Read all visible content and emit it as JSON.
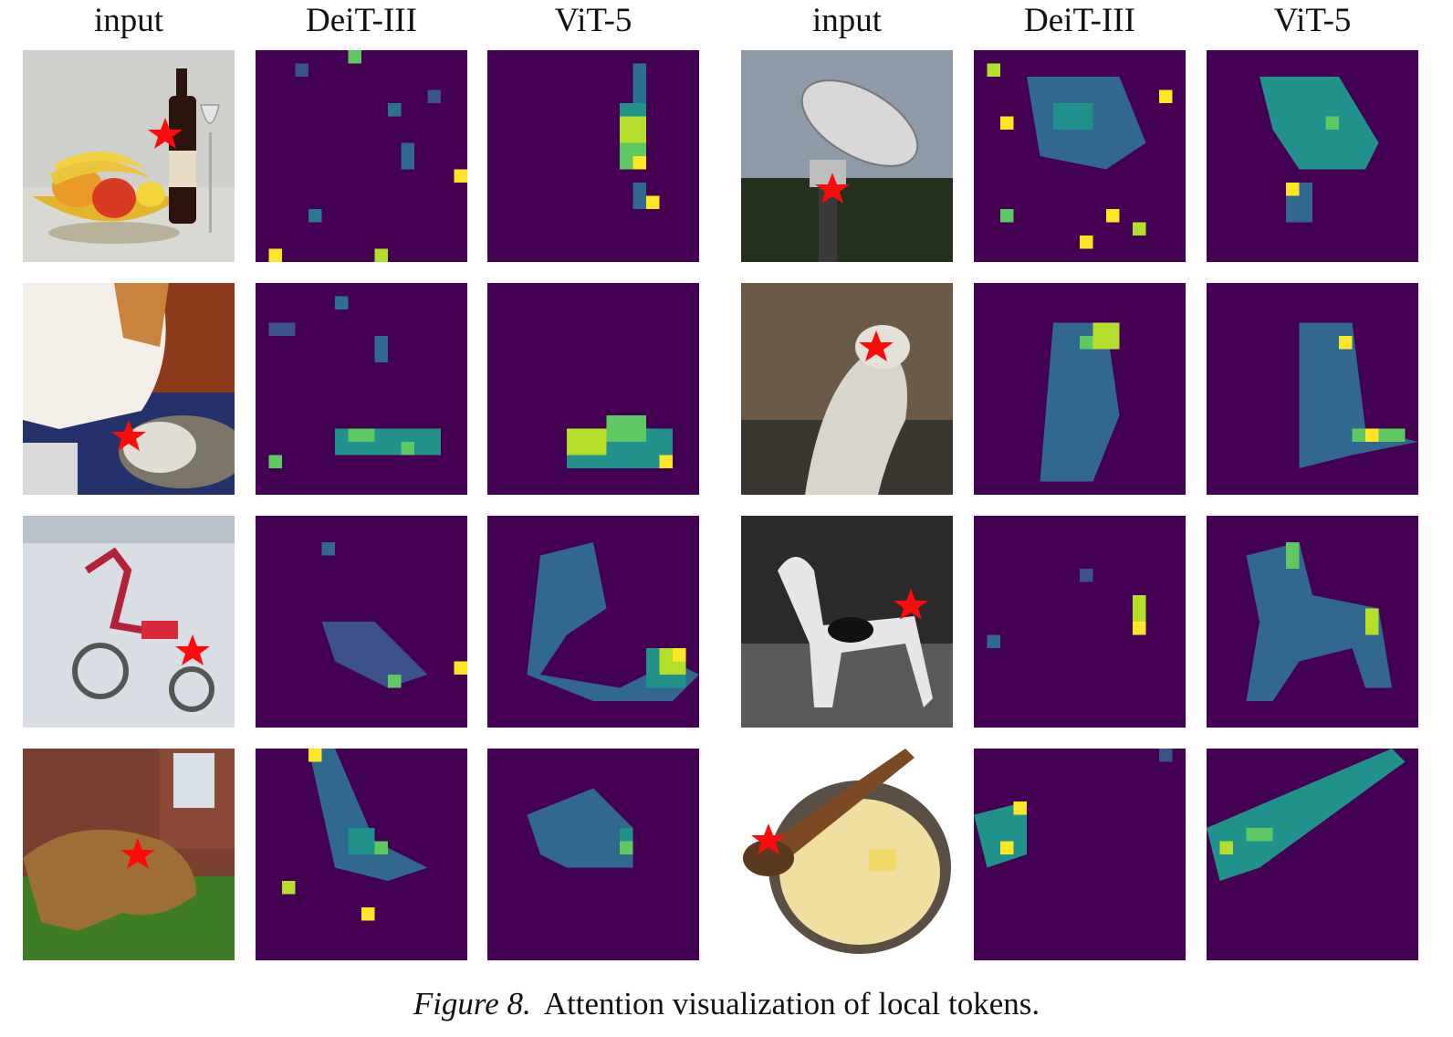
{
  "headers": {
    "left": [
      "input",
      "DeiT-III",
      "ViT-5"
    ],
    "right": [
      "input",
      "DeiT-III",
      "ViT-5"
    ]
  },
  "caption": {
    "label": "Figure 8.",
    "text": "Attention visualization of local tokens."
  },
  "colors": {
    "viridis_low": "#440154",
    "viridis_mid": "#21918c",
    "viridis_high": "#fde725",
    "star": "#ff0a0a"
  },
  "rows": [
    {
      "left": {
        "input": "still life: fruit bowl, wine bottle and glass",
        "deit": "scattered attention",
        "vit5": "focused on bottle"
      },
      "right": {
        "input": "radio telescope dish over trees",
        "deit": "diffuse on dish",
        "vit5": "focused on dish"
      }
    },
    {
      "left": {
        "input": "cat paw on computer mouse",
        "deit": "diffuse on mouse",
        "vit5": "focused on mouse"
      },
      "right": {
        "input": "snow leopard standing",
        "deit": "diffuse on leopard",
        "vit5": "focused on leopard"
      }
    },
    {
      "left": {
        "input": "red tricycle in snow",
        "deit": "diffuse on tricycle",
        "vit5": "focused on tricycle"
      },
      "right": {
        "input": "great dane in black and white",
        "deit": "sparse on dog",
        "vit5": "focused on dog"
      }
    },
    {
      "left": {
        "input": "terrier dog on leash in grass",
        "deit": "diffuse on dog",
        "vit5": "focused on dog"
      },
      "right": {
        "input": "mashed potatoes with wooden spoon",
        "deit": "sparse on spoon",
        "vit5": "focused along spoon"
      }
    }
  ]
}
